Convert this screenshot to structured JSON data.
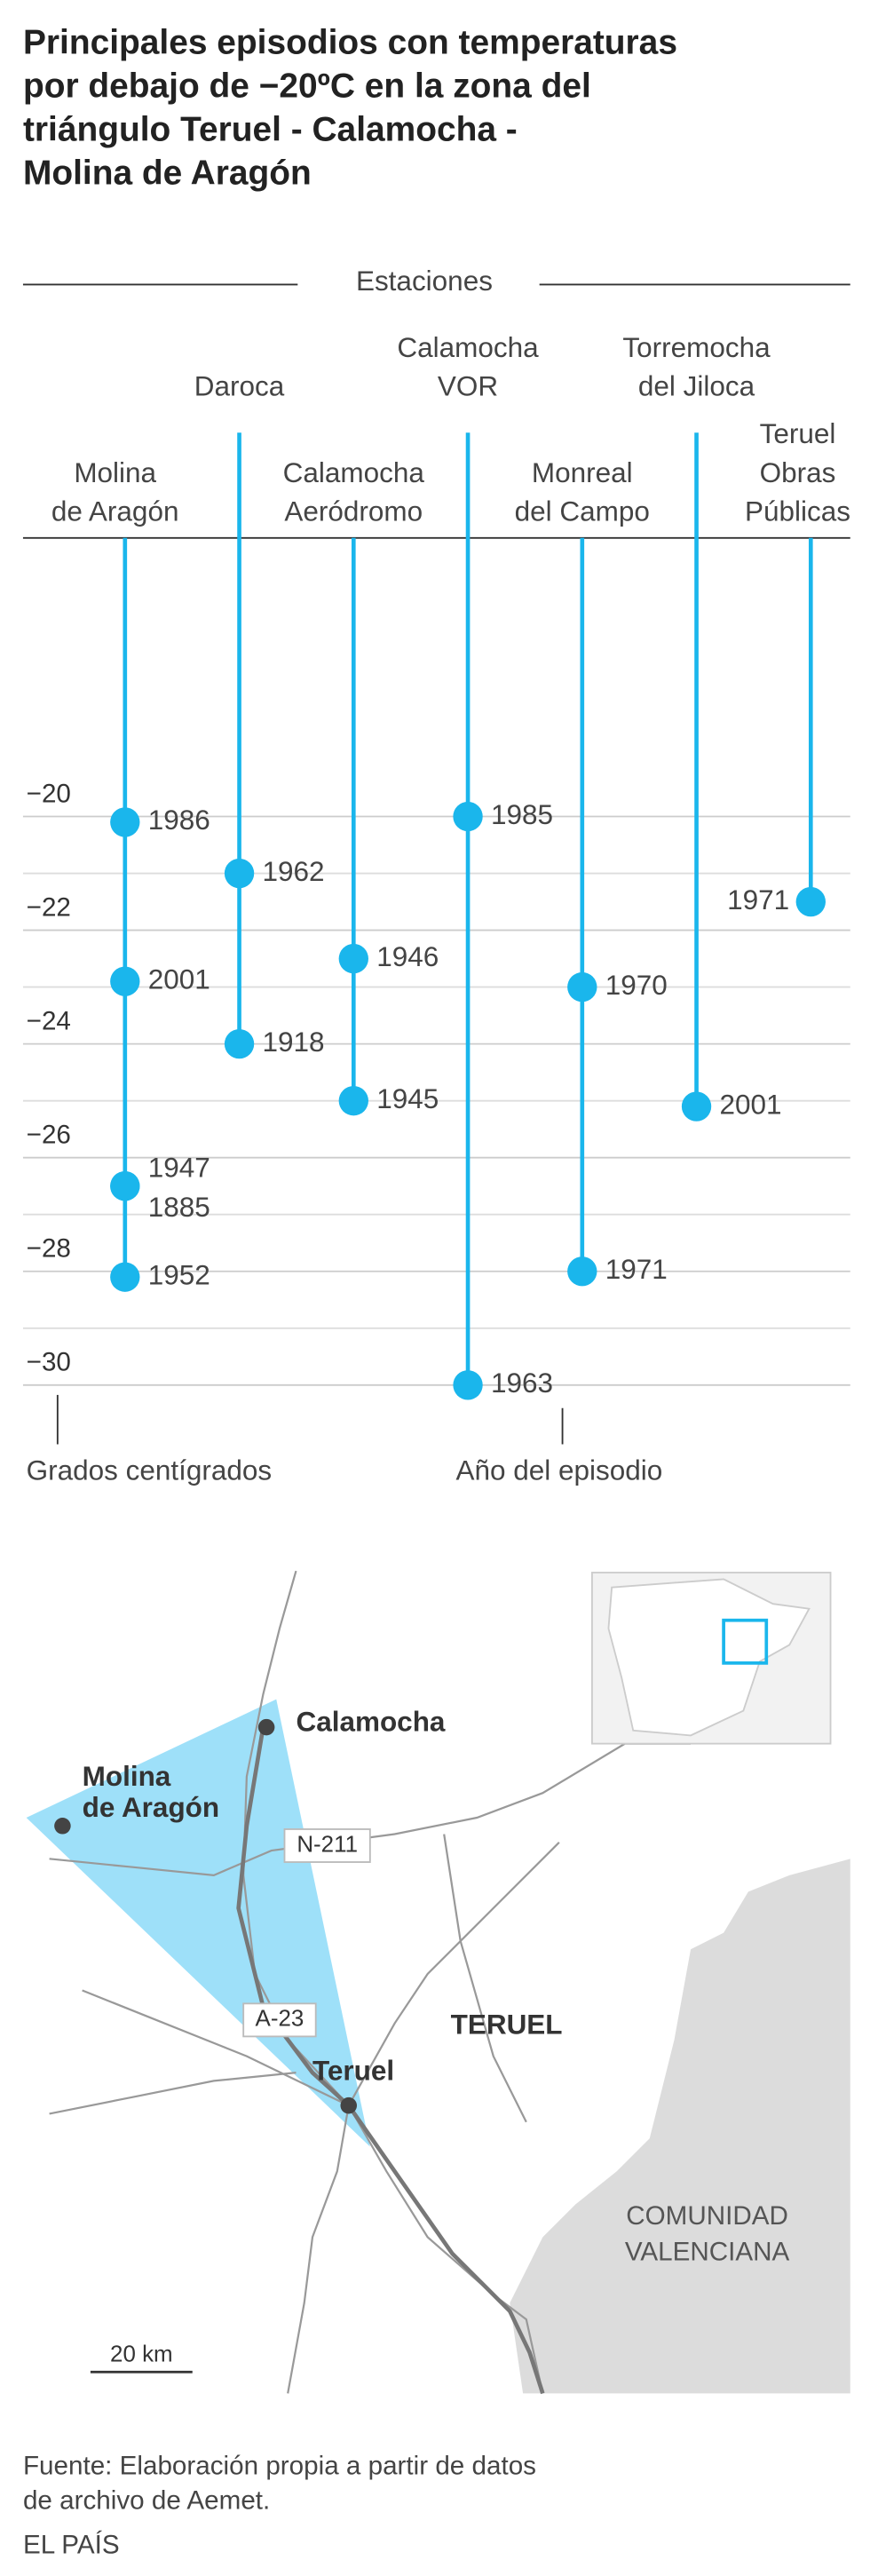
{
  "chart_data": {
    "type": "dot-stem",
    "title_lines": [
      "Principales episodios con temperaturas",
      "por debajo de −20ºC en la zona del",
      "triángulo Teruel - Calamocha -",
      "Molina de Aragón"
    ],
    "header": "Estaciones",
    "ylim": [
      -30,
      -15.1
    ],
    "yticks": [
      {
        "value": -20,
        "label": "−20"
      },
      {
        "value": -22,
        "label": "−22"
      },
      {
        "value": -24,
        "label": "−24"
      },
      {
        "value": -26,
        "label": "−26"
      },
      {
        "value": -28,
        "label": "−28"
      },
      {
        "value": -30,
        "label": "−30"
      }
    ],
    "minor_yticks": [
      -21,
      -23,
      -25,
      -27,
      -29
    ],
    "y_note": "Grados centígrados",
    "label_note": "Año del episodio",
    "color": "#1ab6ec",
    "series": [
      {
        "name_lines": [
          "Molina",
          "de Aragón"
        ],
        "labels": [
          "1986",
          "2001",
          "1947",
          "1885",
          "1952"
        ],
        "values": [
          -20.1,
          -22.9,
          -26.5,
          -26.5,
          -28.1
        ]
      },
      {
        "name_lines": [
          "Daroca"
        ],
        "labels": [
          "1962",
          "1918"
        ],
        "values": [
          -21.0,
          -24.0
        ]
      },
      {
        "name_lines": [
          "Calamocha",
          "Aeródromo"
        ],
        "labels": [
          "1946",
          "1945"
        ],
        "values": [
          -22.5,
          -25.0
        ]
      },
      {
        "name_lines": [
          "Calamocha",
          "VOR"
        ],
        "labels": [
          "1985",
          "1963"
        ],
        "values": [
          -20.0,
          -30.0
        ]
      },
      {
        "name_lines": [
          "Monreal",
          "del Campo"
        ],
        "labels": [
          "1970",
          "1971"
        ],
        "values": [
          -23.0,
          -28.0
        ]
      },
      {
        "name_lines": [
          "Torremocha",
          "del Jiloca"
        ],
        "labels": [
          "2001"
        ],
        "values": [
          -25.1
        ]
      },
      {
        "name_lines": [
          "Teruel",
          "Obras",
          "Públicas"
        ],
        "labels": [
          "1971"
        ],
        "values": [
          -21.5
        ]
      }
    ]
  },
  "map": {
    "places": [
      "Calamocha",
      "Molina",
      "de Aragón",
      "Teruel"
    ],
    "roads": [
      "N-211",
      "A-23"
    ],
    "region": "TERUEL",
    "community": [
      "COMUNIDAD",
      "VALENCIANA"
    ],
    "scale": "20 km"
  },
  "footer": {
    "source_lines": [
      "Fuente: Elaboración propia a partir de datos",
      "de archivo de Aemet."
    ],
    "brand": "EL PAÍS"
  }
}
